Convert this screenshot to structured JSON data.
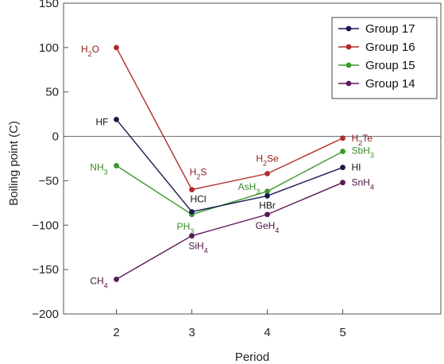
{
  "chart_data": {
    "type": "line",
    "title": "",
    "xlabel": "Period",
    "ylabel": "Boiling point (C)",
    "xlim": [
      1.3,
      6.3
    ],
    "ylim": [
      -200,
      150
    ],
    "xticks": [
      2,
      3,
      4,
      5
    ],
    "yticks": [
      -200,
      -150,
      -100,
      -50,
      0,
      50,
      100,
      150
    ],
    "ytick_labels": [
      "−200",
      "−150",
      "−100",
      "−50",
      "0",
      "50",
      "100",
      "150"
    ],
    "grid": false,
    "legend_position": "top-right",
    "series": [
      {
        "name": "Group 17",
        "color": "#1a1a4e",
        "label_color": "#111111",
        "x": [
          2,
          3,
          4,
          5
        ],
        "y": [
          19,
          -85,
          -67,
          -35
        ],
        "labels": [
          "HF",
          "HCl",
          "HBr",
          "HI"
        ]
      },
      {
        "name": "Group 16",
        "color": "#b22a2a",
        "label_color": "#8b1a1a",
        "x": [
          2,
          3,
          4,
          5
        ],
        "y": [
          100,
          -60,
          -42,
          -2
        ],
        "labels": [
          "H2O",
          "H2S",
          "H2Se",
          "H2Te"
        ]
      },
      {
        "name": "Group 15",
        "color": "#3a9a2a",
        "label_color": "#3a8a2a",
        "x": [
          2,
          3,
          4,
          5
        ],
        "y": [
          -33,
          -88,
          -62,
          -17
        ],
        "labels": [
          "NH3",
          "PH3",
          "AsH3",
          "SbH3"
        ]
      },
      {
        "name": "Group 14",
        "color": "#5a1a5a",
        "label_color": "#4a1040",
        "x": [
          2,
          3,
          4,
          5
        ],
        "y": [
          -161,
          -112,
          -88,
          -52
        ],
        "labels": [
          "CH4",
          "SiH4",
          "GeH4",
          "SnH4"
        ]
      }
    ]
  }
}
